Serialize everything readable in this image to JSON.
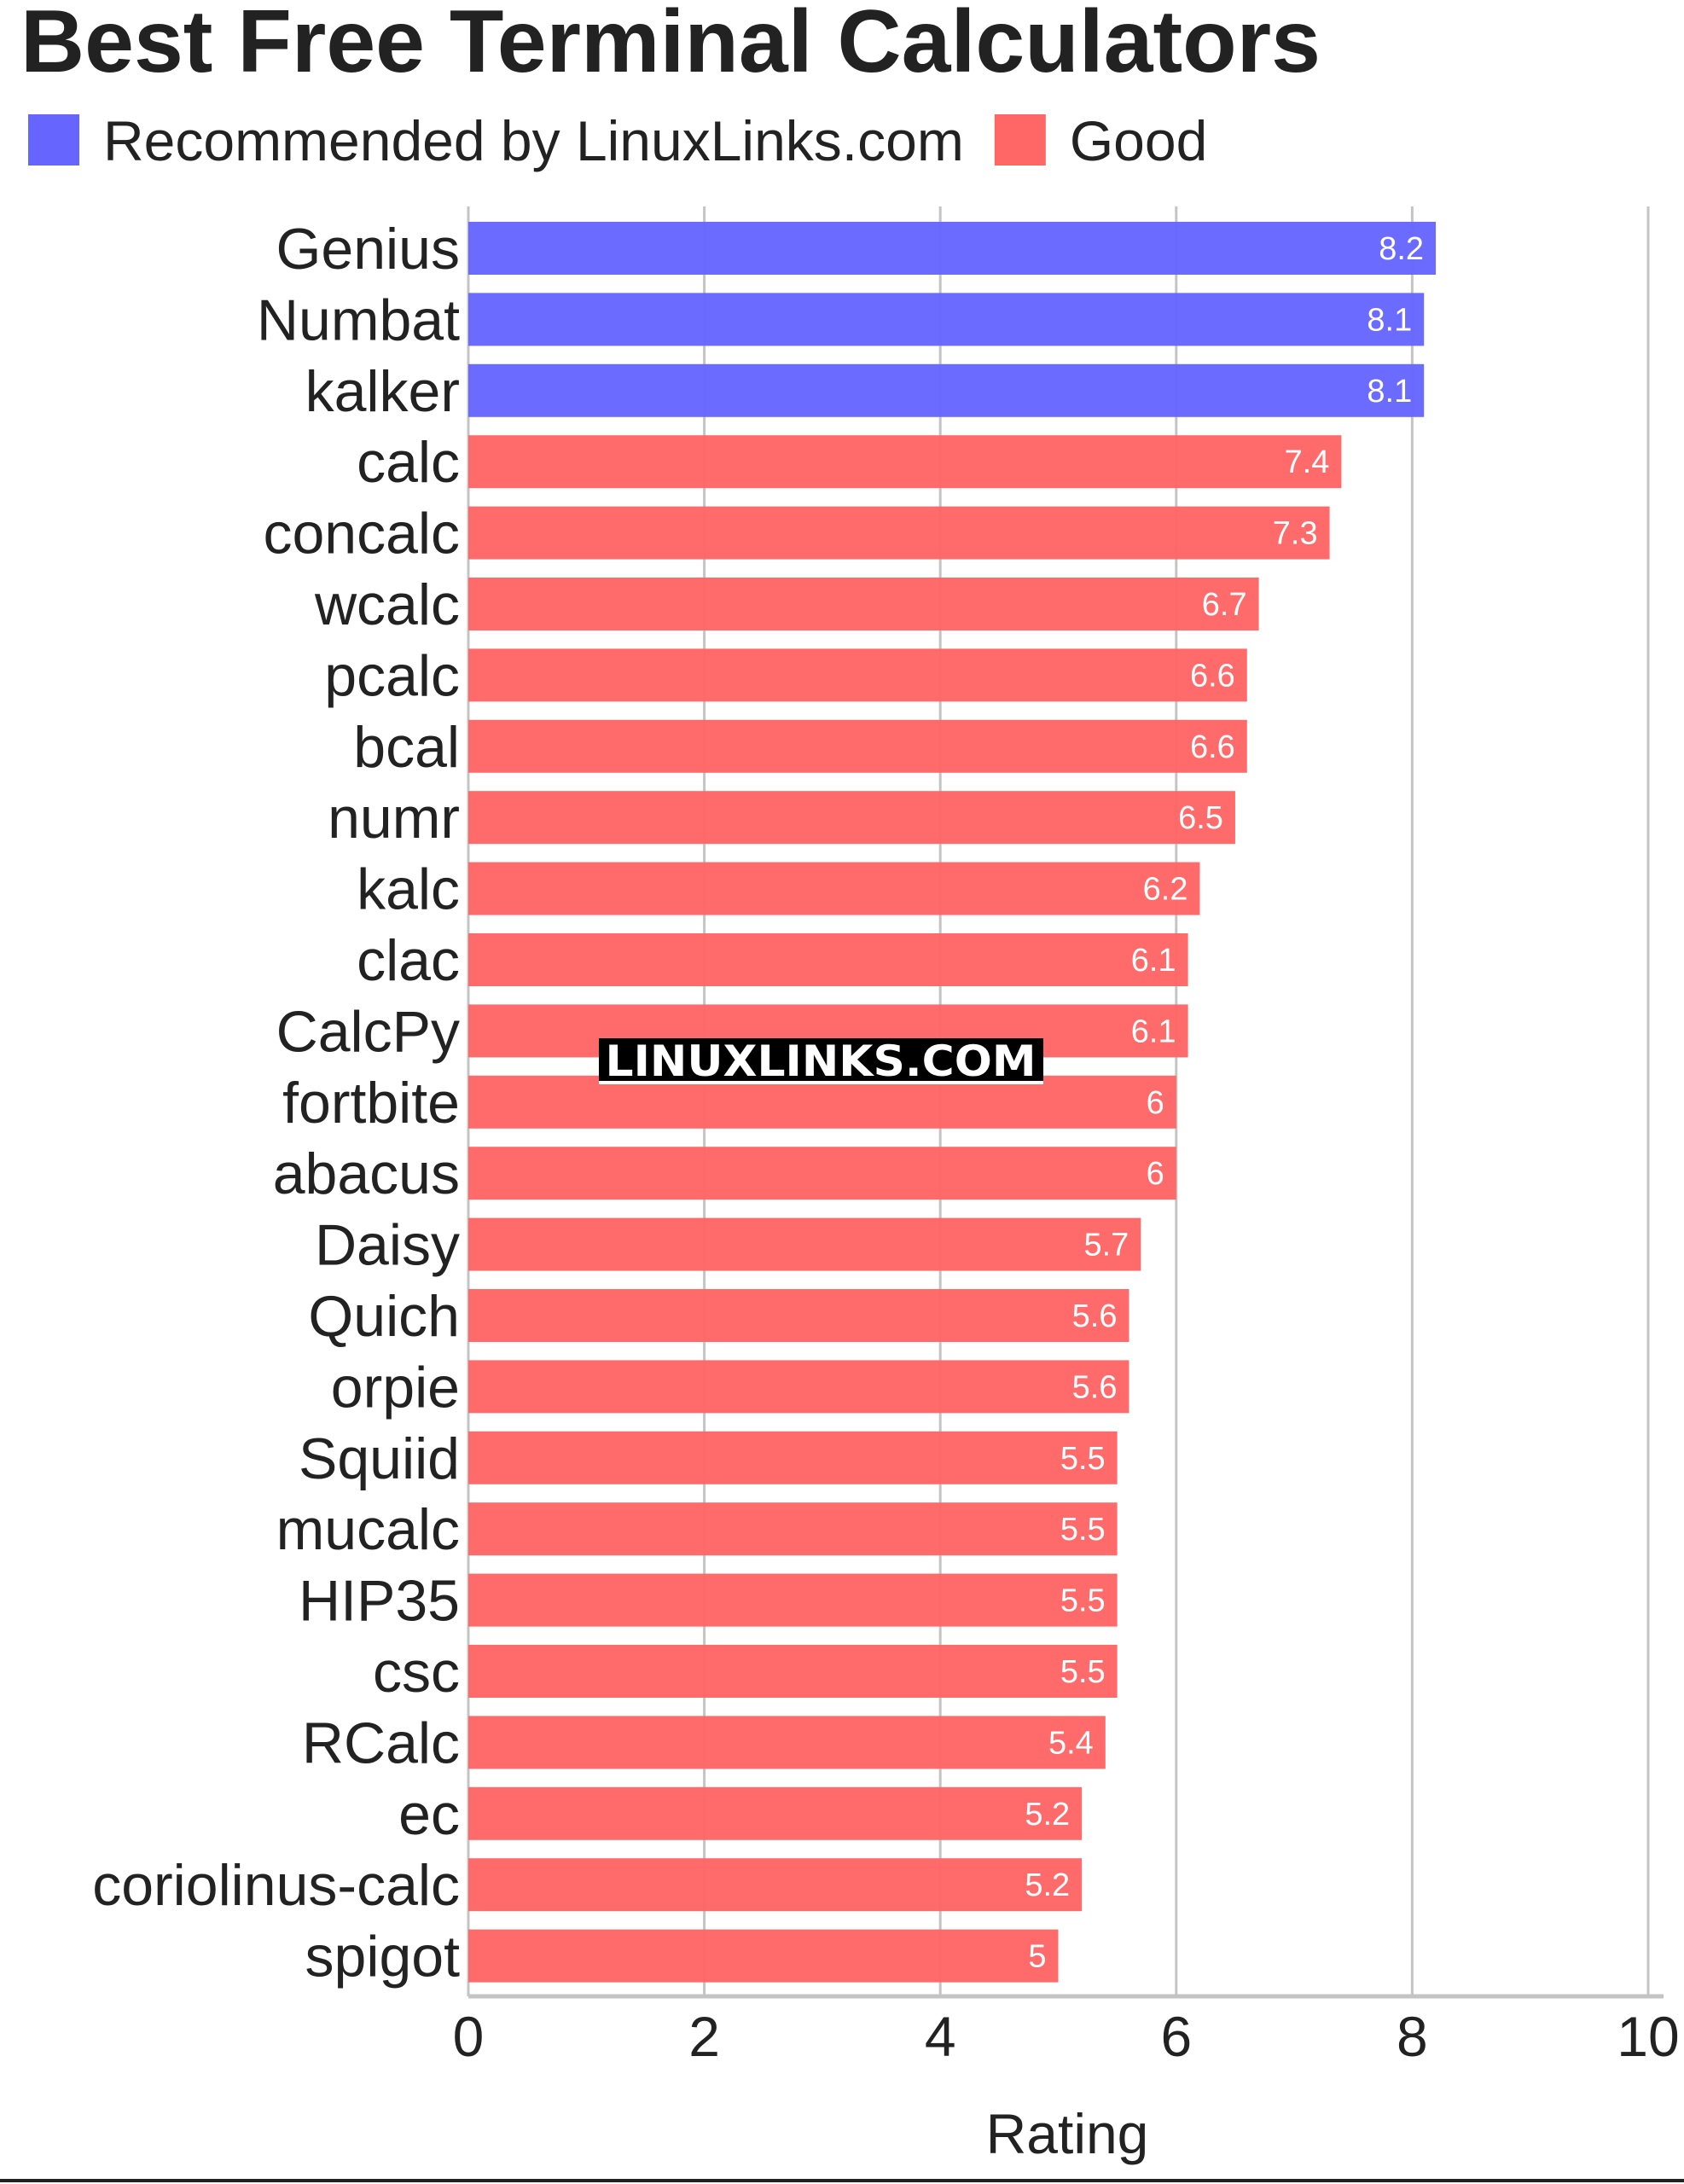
{
  "chart_data": {
    "type": "bar",
    "orientation": "horizontal",
    "title": "Best Free Terminal Calculators",
    "xlabel": "Rating",
    "ylabel": "",
    "xlim": [
      0,
      10
    ],
    "xticks": [
      0,
      2,
      4,
      6,
      8,
      10
    ],
    "grid": true,
    "legend_position": "top-left",
    "legend": [
      {
        "name": "Recommended by LinuxLinks.com",
        "color": "#6666ff"
      },
      {
        "name": "Good",
        "color": "#ff6666"
      }
    ],
    "categories": [
      "Genius",
      "Numbat",
      "kalker",
      "calc",
      "concalc",
      "wcalc",
      "pcalc",
      "bcal",
      "numr",
      "kalc",
      "clac",
      "CalcPy",
      "fortbite",
      "abacus",
      "Daisy",
      "Quich",
      "orpie",
      "Squiid",
      "mucalc",
      "HIP35",
      "csc",
      "RCalc",
      "ec",
      "coriolinus-calc",
      "spigot"
    ],
    "values": [
      8.2,
      8.1,
      8.1,
      7.4,
      7.3,
      6.7,
      6.6,
      6.6,
      6.5,
      6.2,
      6.1,
      6.1,
      6,
      6,
      5.7,
      5.6,
      5.6,
      5.5,
      5.5,
      5.5,
      5.5,
      5.4,
      5.2,
      5.2,
      5
    ],
    "groups": [
      0,
      0,
      0,
      1,
      1,
      1,
      1,
      1,
      1,
      1,
      1,
      1,
      1,
      1,
      1,
      1,
      1,
      1,
      1,
      1,
      1,
      1,
      1,
      1,
      1
    ]
  },
  "watermark": "LINUXLINKS.COM"
}
